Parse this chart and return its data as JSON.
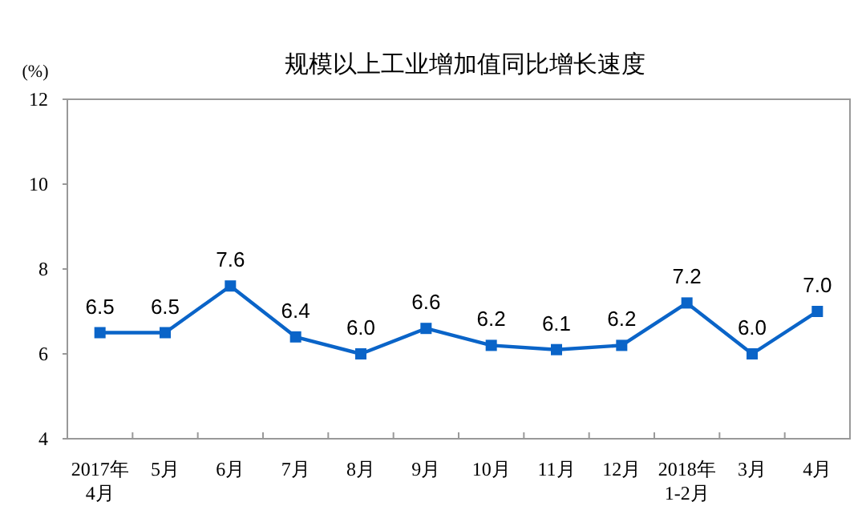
{
  "chart_data": {
    "type": "line",
    "title": "规模以上工业增加值同比增长速度",
    "ylabel": "(%)",
    "categories": [
      "2017年\n4月",
      "5月",
      "6月",
      "7月",
      "8月",
      "9月",
      "10月",
      "11月",
      "12月",
      "2018年\n1-2月",
      "3月",
      "4月"
    ],
    "values": [
      6.5,
      6.5,
      7.6,
      6.4,
      6.0,
      6.6,
      6.2,
      6.1,
      6.2,
      7.2,
      6.0,
      7.0
    ],
    "value_labels": [
      "6.5",
      "6.5",
      "7.6",
      "6.4",
      "6.0",
      "6.6",
      "6.2",
      "6.1",
      "6.2",
      "7.2",
      "6.0",
      "7.0"
    ],
    "color": "#0a64c8",
    "ylim": [
      4,
      12
    ],
    "yticks": [
      4,
      6,
      8,
      10,
      12
    ],
    "marker": "square",
    "line_style": "solid"
  }
}
